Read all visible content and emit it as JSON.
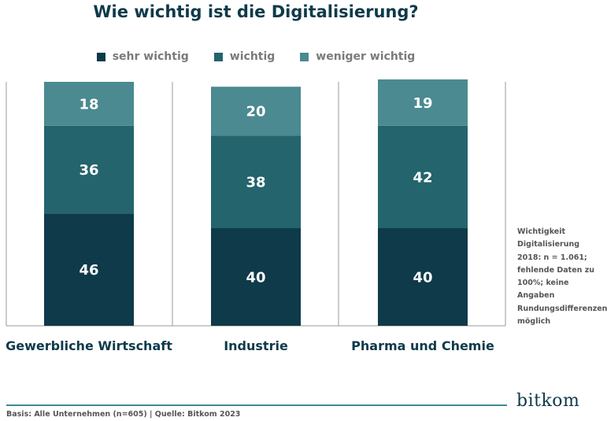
{
  "chart_data": {
    "type": "bar",
    "stacked": true,
    "title": "Wie wichtig ist die Digitalisierung?",
    "categories": [
      "Gewerbliche Wirtschaft",
      "Industrie",
      "Pharma und Chemie"
    ],
    "series": [
      {
        "name": "sehr wichtig",
        "values": [
          46,
          40,
          40
        ],
        "color": "#0e3a4a"
      },
      {
        "name": "wichtig",
        "values": [
          36,
          38,
          42
        ],
        "color": "#24646d"
      },
      {
        "name": "weniger wichtig",
        "values": [
          18,
          20,
          19
        ],
        "color": "#4a8a90"
      }
    ],
    "ylim": [
      0,
      100
    ],
    "grid": false,
    "legend_position": "top"
  },
  "note": "Wichtigkeit Digitalisierung 2018: n = 1.061; fehlende Daten zu 100%; keine Angaben Rundungsdifferenzen möglich",
  "footer": {
    "basis": "Basis: Alle Unternehmen (n=605) | Quelle: Bitkom 2023",
    "logo": "bitkom"
  }
}
